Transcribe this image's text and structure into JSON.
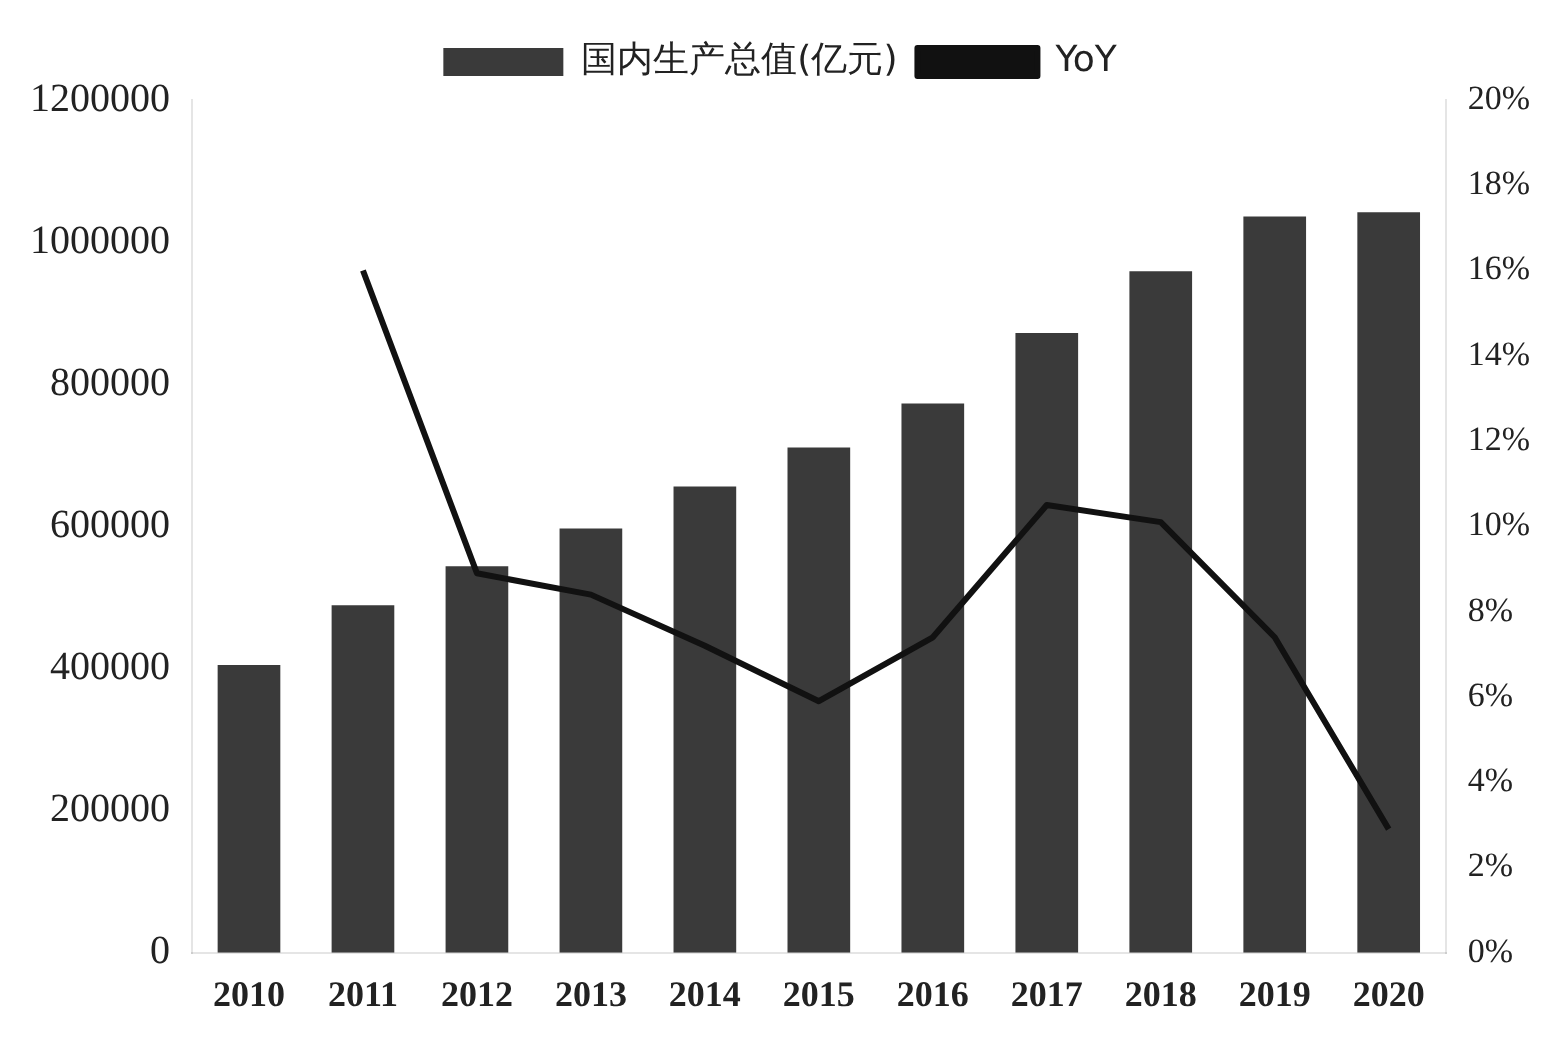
{
  "chart_data": {
    "type": "bar",
    "categories": [
      "2010",
      "2011",
      "2012",
      "2013",
      "2014",
      "2015",
      "2016",
      "2017",
      "2018",
      "2019",
      "2020"
    ],
    "series": [
      {
        "name": "国内生产总值(亿元)",
        "color": "#3a3a3a",
        "values": [
          405000,
          489000,
          544000,
          597000,
          656000,
          711000,
          773000,
          872000,
          959000,
          1036000,
          1042000
        ]
      },
      {
        "name": "YoY",
        "type": "line",
        "axis": "y2",
        "color": "#111111",
        "values": [
          null,
          16,
          8.9,
          8.4,
          7.2,
          5.9,
          7.4,
          10.5,
          10.1,
          7.4,
          2.9
        ]
      }
    ],
    "ylim": [
      0,
      1200000
    ],
    "yticks": [
      0,
      200000,
      400000,
      600000,
      800000,
      1000000,
      1200000
    ],
    "y2lim": [
      0,
      20
    ],
    "y2ticks": [
      {
        "value": 0,
        "label": "0%"
      },
      {
        "value": 2,
        "label": "2%"
      },
      {
        "value": 4,
        "label": "4%"
      },
      {
        "value": 6,
        "label": "6%"
      },
      {
        "value": 8,
        "label": "8%"
      },
      {
        "value": 10,
        "label": "10%"
      },
      {
        "value": 12,
        "label": "12%"
      },
      {
        "value": 14,
        "label": "14%"
      },
      {
        "value": 16,
        "label": "16%"
      },
      {
        "value": 18,
        "label": "18%"
      },
      {
        "value": 20,
        "label": "20%"
      }
    ],
    "legend": "top",
    "grid": false,
    "marker": "none",
    "line_style": "solid"
  }
}
